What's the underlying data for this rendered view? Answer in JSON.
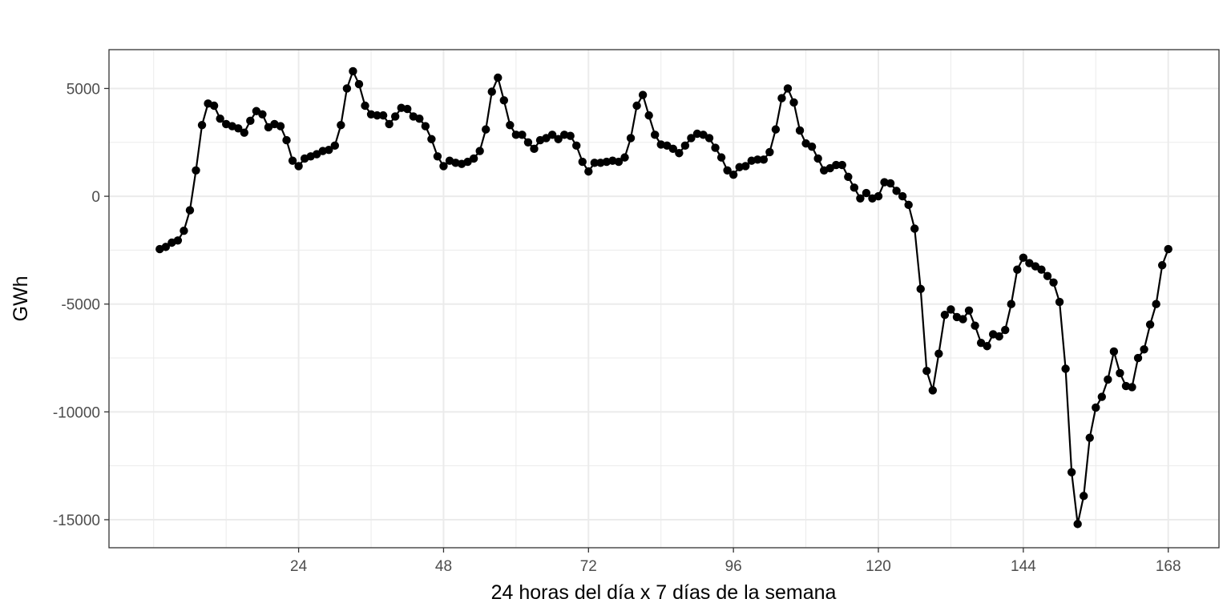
{
  "chart_data": {
    "type": "line",
    "title": "",
    "xlabel": "24 horas del día x 7 días de la semana",
    "ylabel": "GWh",
    "xlim": [
      -7.4,
      176.4
    ],
    "ylim": [
      -16300,
      6800
    ],
    "x_ticks": [
      24,
      48,
      72,
      96,
      120,
      144,
      168
    ],
    "x_minor_ticks": [
      0,
      12,
      36,
      60,
      84,
      108,
      132,
      156
    ],
    "y_ticks": [
      -15000,
      -10000,
      -5000,
      0,
      5000
    ],
    "y_minor_ticks": [
      -12500,
      -7500,
      -2500,
      2500
    ],
    "y_tick_labels": [
      "-15000",
      "-10000",
      "-5000",
      "0",
      "5000"
    ],
    "x_tick_labels": [
      "24",
      "48",
      "72",
      "96",
      "120",
      "144",
      "168"
    ],
    "grid": true,
    "legend": "none",
    "series": [
      {
        "color": "#000000",
        "x": [
          1,
          2,
          3,
          4,
          5,
          6,
          7,
          8,
          9,
          10,
          11,
          12,
          13,
          14,
          15,
          16,
          17,
          18,
          19,
          20,
          21,
          22,
          23,
          24,
          25,
          26,
          27,
          28,
          29,
          30,
          31,
          32,
          33,
          34,
          35,
          36,
          37,
          38,
          39,
          40,
          41,
          42,
          43,
          44,
          45,
          46,
          47,
          48,
          49,
          50,
          51,
          52,
          53,
          54,
          55,
          56,
          57,
          58,
          59,
          60,
          61,
          62,
          63,
          64,
          65,
          66,
          67,
          68,
          69,
          70,
          71,
          72,
          73,
          74,
          75,
          76,
          77,
          78,
          79,
          80,
          81,
          82,
          83,
          84,
          85,
          86,
          87,
          88,
          89,
          90,
          91,
          92,
          93,
          94,
          95,
          96,
          97,
          98,
          99,
          100,
          101,
          102,
          103,
          104,
          105,
          106,
          107,
          108,
          109,
          110,
          111,
          112,
          113,
          114,
          115,
          116,
          117,
          118,
          119,
          120,
          121,
          122,
          123,
          124,
          125,
          126,
          127,
          128,
          129,
          130,
          131,
          132,
          133,
          134,
          135,
          136,
          137,
          138,
          139,
          140,
          141,
          142,
          143,
          144,
          145,
          146,
          147,
          148,
          149,
          150,
          151,
          152,
          153,
          154,
          155,
          156,
          157,
          158,
          159,
          160,
          161,
          162,
          163,
          164,
          165,
          166,
          167,
          168
        ],
        "y": [
          -2450,
          -2350,
          -2150,
          -2050,
          -1600,
          -650,
          1200,
          3300,
          4300,
          4200,
          3600,
          3350,
          3250,
          3150,
          2950,
          3500,
          3950,
          3800,
          3200,
          3350,
          3250,
          2600,
          1650,
          1400,
          1750,
          1850,
          1950,
          2100,
          2150,
          2350,
          3300,
          5000,
          5800,
          5200,
          4200,
          3800,
          3750,
          3750,
          3350,
          3700,
          4100,
          4050,
          3700,
          3600,
          3250,
          2650,
          1850,
          1400,
          1650,
          1550,
          1500,
          1600,
          1750,
          2100,
          3100,
          4850,
          5500,
          4450,
          3300,
          2850,
          2850,
          2500,
          2200,
          2600,
          2700,
          2850,
          2650,
          2850,
          2800,
          2350,
          1600,
          1150,
          1550,
          1550,
          1600,
          1650,
          1600,
          1800,
          2700,
          4200,
          4700,
          3750,
          2850,
          2400,
          2350,
          2200,
          2000,
          2350,
          2700,
          2900,
          2850,
          2700,
          2250,
          1800,
          1200,
          1000,
          1350,
          1400,
          1650,
          1700,
          1700,
          2050,
          3100,
          4550,
          5000,
          4350,
          3050,
          2450,
          2300,
          1750,
          1200,
          1300,
          1450,
          1450,
          900,
          400,
          -100,
          150,
          -100,
          0,
          650,
          600,
          250,
          0,
          -400,
          -1500,
          -4300,
          -8100,
          -9000,
          -7300,
          -5500,
          -5250,
          -5600,
          -5700,
          -5300,
          -6000,
          -6800,
          -6950,
          -6400,
          -6500,
          -6200,
          -5000,
          -3400,
          -2850,
          -3100,
          -3250,
          -3400,
          -3700,
          -4000,
          -4900,
          -8000,
          -12800,
          -15200,
          -13900,
          -11200,
          -9800,
          -9300,
          -8500,
          -7200,
          -8200,
          -8800,
          -8850,
          -7500,
          -7100,
          -5950,
          -5000,
          -3200,
          -2450
        ]
      }
    ]
  }
}
